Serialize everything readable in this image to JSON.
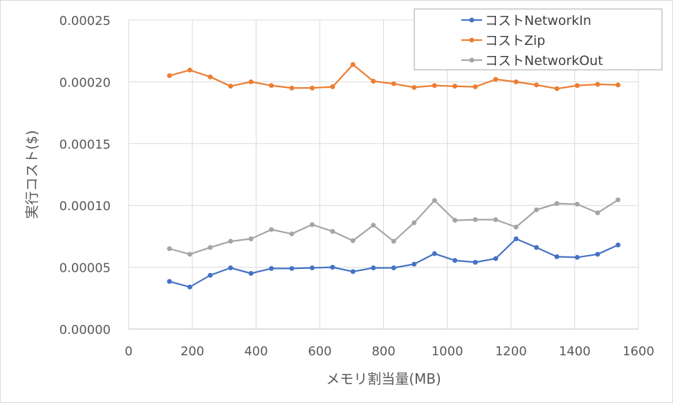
{
  "chart_data": {
    "type": "line",
    "xlabel": "メモリ割当量(MB)",
    "ylabel": "実行コスト($)",
    "xlim": [
      0,
      1600
    ],
    "ylim": [
      0,
      0.00025
    ],
    "x_ticks": [
      0,
      200,
      400,
      600,
      800,
      1000,
      1200,
      1400,
      1600
    ],
    "y_ticks": [
      0,
      5e-05,
      0.0001,
      0.00015,
      0.0002,
      0.00025
    ],
    "x_tick_labels": [
      "0",
      "200",
      "400",
      "600",
      "800",
      "1000",
      "1200",
      "1400",
      "1600"
    ],
    "y_tick_labels": [
      "0.00000",
      "0.00005",
      "0.00010",
      "0.00015",
      "0.00020",
      "0.00025"
    ],
    "grid": true,
    "legend_position": "top-right",
    "x": [
      128,
      192,
      256,
      320,
      384,
      448,
      512,
      576,
      640,
      704,
      768,
      832,
      896,
      960,
      1024,
      1088,
      1152,
      1216,
      1280,
      1344,
      1408,
      1472,
      1536
    ],
    "series": [
      {
        "name": "コストNetworkIn",
        "color": "#4472c4",
        "values": [
          3.85e-05,
          3.4e-05,
          4.35e-05,
          4.95e-05,
          4.5e-05,
          4.9e-05,
          4.9e-05,
          4.95e-05,
          5e-05,
          4.65e-05,
          4.95e-05,
          4.95e-05,
          5.25e-05,
          6.1e-05,
          5.55e-05,
          5.4e-05,
          5.7e-05,
          7.3e-05,
          6.6e-05,
          5.85e-05,
          5.8e-05,
          6.05e-05,
          6.8e-05
        ]
      },
      {
        "name": "コストZip",
        "color": "#ed7d31",
        "values": [
          0.000205,
          0.0002095,
          0.000204,
          0.0001965,
          0.0002,
          0.000197,
          0.000195,
          0.000195,
          0.000196,
          0.000214,
          0.0002005,
          0.0001985,
          0.0001955,
          0.000197,
          0.0001965,
          0.000196,
          0.000202,
          0.0002,
          0.0001975,
          0.0001945,
          0.000197,
          0.000198,
          0.0001975
        ]
      },
      {
        "name": "コストNetworkOut",
        "color": "#a5a5a5",
        "values": [
          6.5e-05,
          6.05e-05,
          6.6e-05,
          7.1e-05,
          7.3e-05,
          8.05e-05,
          7.7e-05,
          8.45e-05,
          7.9e-05,
          7.15e-05,
          8.4e-05,
          7.1e-05,
          8.6e-05,
          0.000104,
          8.8e-05,
          8.85e-05,
          8.85e-05,
          8.25e-05,
          9.65e-05,
          0.0001015,
          0.000101,
          9.4e-05,
          0.0001045
        ]
      }
    ]
  }
}
